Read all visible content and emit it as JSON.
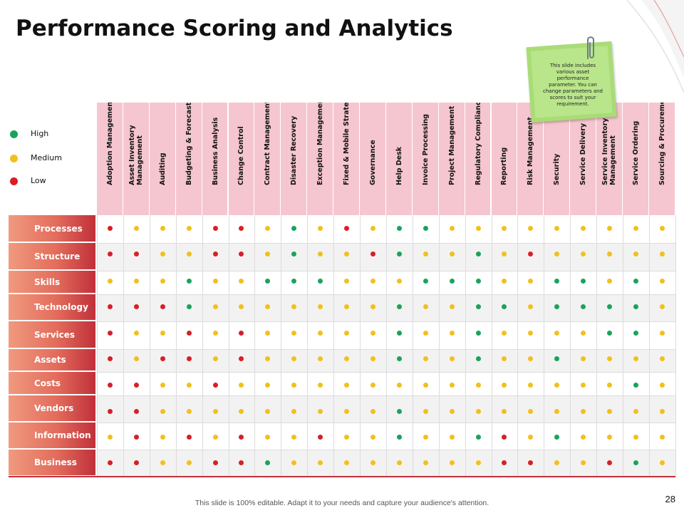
{
  "title": "Performance Scoring and Analytics",
  "legend": [
    {
      "label": "High",
      "color": "#1aa35a"
    },
    {
      "label": "Medium",
      "color": "#f2c01c"
    },
    {
      "label": "Low",
      "color": "#d81f26"
    }
  ],
  "columns": [
    "Adoption Management",
    "Asset Inventory Management",
    "Auditing",
    "Budgeting & Forecasting",
    "Business Analysis",
    "Change Control",
    "Contract Management",
    "Disaster Recovery",
    "Exception Management",
    "Fixed & Mobile Strategy",
    "Governance",
    "Help Desk",
    "Invoice Processing",
    "Project Management",
    "Regulatory Compliance",
    "Reporting",
    "Risk Management",
    "Security",
    "Service Delivery",
    "Service Inventory Management",
    "Service Ordering",
    "Sourcing & Procurement"
  ],
  "rows": [
    {
      "label": "Processes",
      "scores": [
        "L",
        "M",
        "M",
        "M",
        "L",
        "L",
        "M",
        "H",
        "M",
        "L",
        "M",
        "H",
        "H",
        "M",
        "M",
        "M",
        "M",
        "M",
        "M",
        "M",
        "M",
        "M"
      ]
    },
    {
      "label": "Structure",
      "scores": [
        "L",
        "L",
        "M",
        "M",
        "L",
        "L",
        "M",
        "H",
        "M",
        "M",
        "L",
        "H",
        "M",
        "M",
        "H",
        "M",
        "L",
        "M",
        "M",
        "M",
        "M",
        "M"
      ]
    },
    {
      "label": "Skills",
      "scores": [
        "M",
        "M",
        "M",
        "H",
        "M",
        "M",
        "H",
        "H",
        "H",
        "M",
        "M",
        "M",
        "H",
        "H",
        "H",
        "M",
        "M",
        "H",
        "H",
        "M",
        "H",
        "M"
      ]
    },
    {
      "label": "Technology",
      "scores": [
        "L",
        "L",
        "L",
        "H",
        "M",
        "M",
        "M",
        "M",
        "M",
        "M",
        "M",
        "H",
        "M",
        "M",
        "H",
        "H",
        "M",
        "H",
        "H",
        "H",
        "H",
        "M"
      ]
    },
    {
      "label": "Services",
      "scores": [
        "L",
        "M",
        "M",
        "L",
        "M",
        "L",
        "M",
        "M",
        "M",
        "M",
        "M",
        "H",
        "M",
        "M",
        "H",
        "M",
        "M",
        "M",
        "M",
        "H",
        "H",
        "M"
      ]
    },
    {
      "label": "Assets",
      "scores": [
        "L",
        "M",
        "L",
        "L",
        "M",
        "L",
        "M",
        "M",
        "M",
        "M",
        "M",
        "H",
        "M",
        "M",
        "H",
        "M",
        "M",
        "H",
        "M",
        "M",
        "M",
        "M"
      ]
    },
    {
      "label": "Costs",
      "scores": [
        "L",
        "L",
        "M",
        "M",
        "L",
        "M",
        "M",
        "M",
        "M",
        "M",
        "M",
        "M",
        "M",
        "M",
        "M",
        "M",
        "M",
        "M",
        "M",
        "M",
        "H",
        "M"
      ]
    },
    {
      "label": "Vendors",
      "scores": [
        "L",
        "L",
        "M",
        "M",
        "M",
        "M",
        "M",
        "M",
        "M",
        "M",
        "M",
        "H",
        "M",
        "M",
        "M",
        "M",
        "M",
        "M",
        "M",
        "M",
        "M",
        "M"
      ]
    },
    {
      "label": "Information",
      "scores": [
        "M",
        "L",
        "M",
        "L",
        "M",
        "L",
        "M",
        "M",
        "L",
        "M",
        "M",
        "H",
        "M",
        "M",
        "H",
        "L",
        "M",
        "H",
        "M",
        "M",
        "M",
        "M"
      ]
    },
    {
      "label": "Business",
      "scores": [
        "L",
        "L",
        "M",
        "M",
        "L",
        "L",
        "H",
        "M",
        "M",
        "M",
        "M",
        "M",
        "M",
        "M",
        "M",
        "L",
        "L",
        "M",
        "M",
        "L",
        "H",
        "M"
      ]
    }
  ],
  "note": "This slide includes various asset performance parameter. You can change parameters and scores to suit your requirement.",
  "footer": "This slide is 100% editable. Adapt it to your needs and capture your audience's attention.",
  "page_number": "28"
}
